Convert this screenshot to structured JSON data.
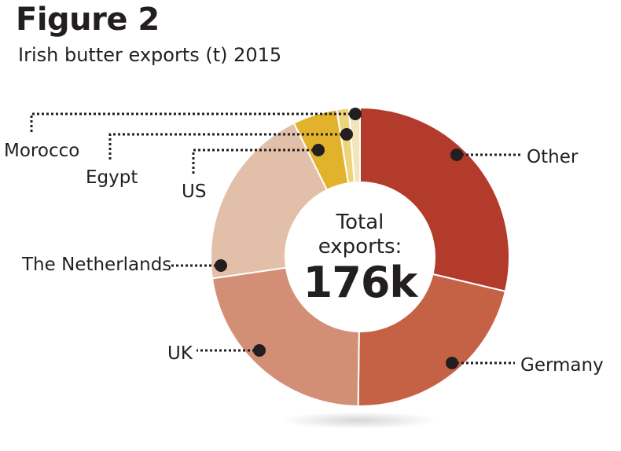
{
  "figure": {
    "label": "Figure 2",
    "subtitle": "Irish butter exports (t) 2015"
  },
  "chart_data": {
    "type": "pie",
    "subtype": "donut",
    "title": "Figure 2",
    "subtitle": "Irish butter exports (t) 2015",
    "center_label": "Total exports:",
    "center_value": "176k",
    "slices": [
      {
        "label": "Other",
        "share": 0.287,
        "color": "#b23b2b"
      },
      {
        "label": "Germany",
        "share": 0.215,
        "color": "#c56246"
      },
      {
        "label": "UK",
        "share": 0.225,
        "color": "#d38f76"
      },
      {
        "label": "The Netherlands",
        "share": 0.2,
        "color": "#e2bfa9"
      },
      {
        "label": "US",
        "share": 0.048,
        "color": "#e2b22d"
      },
      {
        "label": "Egypt",
        "share": 0.013,
        "color": "#edd37b"
      },
      {
        "label": "Morocco",
        "share": 0.012,
        "color": "#f4e5b9"
      }
    ],
    "legend": "callout labels with dotted leader lines"
  }
}
